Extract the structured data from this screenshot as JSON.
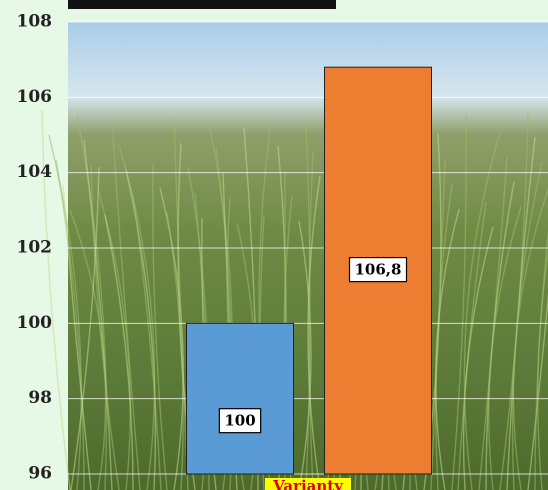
{
  "chart_data": {
    "type": "bar",
    "xlabel": "Varianty",
    "categories": [
      null,
      null
    ],
    "values": [
      100,
      106.8
    ],
    "value_labels": [
      "100",
      "106,8"
    ],
    "colors": [
      "#5b9bd5",
      "#ed7d31"
    ],
    "ylim": [
      96,
      108
    ],
    "yticks": [
      96,
      98,
      100,
      102,
      104,
      106,
      108
    ],
    "grid": true
  }
}
